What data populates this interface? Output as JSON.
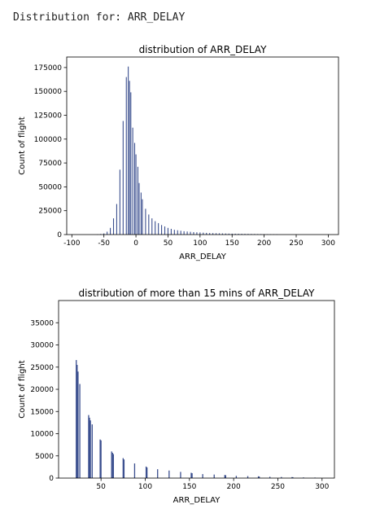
{
  "header": {
    "prefix": "Distribution for:",
    "column": "ARR_DELAY"
  },
  "colors": {
    "bar": "#3b4f8f",
    "axis": "#000000"
  },
  "chart_data": [
    {
      "type": "bar",
      "title": "distribution of ARR_DELAY",
      "xlabel": "ARR_DELAY",
      "ylabel": "Count of flight",
      "xlim": [
        -108,
        316
      ],
      "ylim": [
        0,
        186000
      ],
      "xticks": [
        -100,
        -50,
        0,
        50,
        100,
        150,
        200,
        250,
        300
      ],
      "yticks": [
        0,
        25000,
        50000,
        75000,
        100000,
        125000,
        150000,
        175000
      ],
      "grid": false,
      "x": [
        -60,
        -55,
        -50,
        -45,
        -40,
        -35,
        -30,
        -25,
        -20,
        -15,
        -12,
        -10,
        -8,
        -5,
        -2,
        0,
        3,
        5,
        8,
        10,
        15,
        20,
        25,
        30,
        35,
        40,
        45,
        50,
        55,
        60,
        65,
        70,
        75,
        80,
        85,
        90,
        95,
        100,
        105,
        110,
        115,
        120,
        125,
        130,
        135,
        140,
        145,
        150,
        155,
        160,
        165,
        170,
        175,
        180,
        185,
        190,
        195,
        200,
        205,
        210,
        215,
        220
      ],
      "values": [
        200,
        600,
        1200,
        3000,
        7000,
        17000,
        32000,
        68000,
        119000,
        165000,
        176000,
        161000,
        149000,
        112000,
        96000,
        84000,
        71000,
        54000,
        44000,
        37000,
        27000,
        21000,
        17000,
        14000,
        12000,
        10000,
        8500,
        7000,
        6000,
        5000,
        4500,
        4000,
        3500,
        3200,
        2900,
        2600,
        2400,
        2200,
        2000,
        1800,
        1600,
        1500,
        1400,
        1300,
        1200,
        1100,
        1000,
        950,
        900,
        850,
        800,
        750,
        700,
        650,
        600,
        550,
        500,
        450,
        400,
        350,
        300,
        250
      ]
    },
    {
      "type": "bar",
      "title": "distribution of more than 15 mins of ARR_DELAY",
      "xlabel": "ARR_DELAY",
      "ylabel": "Count of flight",
      "xlim": [
        2,
        314
      ],
      "ylim": [
        0,
        40000
      ],
      "xticks": [
        50,
        100,
        150,
        200,
        250,
        300
      ],
      "yticks": [
        0,
        5000,
        10000,
        15000,
        20000,
        25000,
        30000,
        35000
      ],
      "grid": false,
      "x": [
        22,
        23,
        24,
        26,
        36,
        37,
        38,
        40,
        49,
        50,
        62,
        63,
        64,
        75,
        76,
        88,
        101,
        102,
        114,
        127,
        140,
        152,
        153,
        165,
        178,
        190,
        191,
        203,
        216,
        228,
        229,
        241,
        254,
        266,
        267,
        279,
        292
      ],
      "values": [
        26600,
        25500,
        24000,
        21200,
        14200,
        13600,
        13000,
        12100,
        8700,
        8500,
        6000,
        5700,
        5400,
        4500,
        4200,
        3300,
        2600,
        2400,
        2000,
        1700,
        1400,
        1200,
        1100,
        900,
        800,
        700,
        650,
        500,
        450,
        400,
        350,
        300,
        250,
        220,
        200,
        150,
        120
      ]
    }
  ]
}
